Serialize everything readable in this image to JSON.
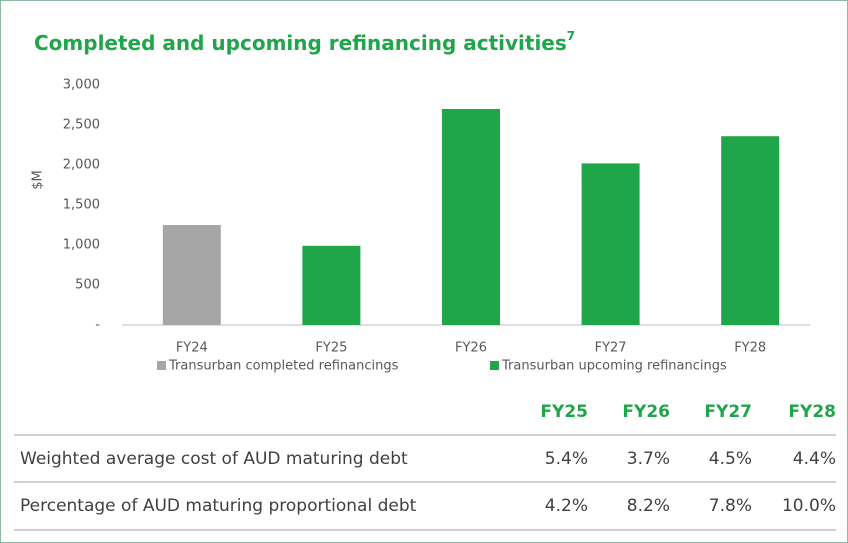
{
  "chart_data": {
    "type": "bar",
    "title": "Completed and upcoming refinancing activities",
    "title_superscript": "7",
    "y_label": "$M",
    "categories": [
      "FY24",
      "FY25",
      "FY26",
      "FY27",
      "FY28"
    ],
    "series": [
      {
        "name": "Transurban completed refinancings",
        "color": "#a6a6a6",
        "values": [
          1250,
          null,
          null,
          null,
          null
        ]
      },
      {
        "name": "Transurban upcoming refinancings",
        "color": "#1fa64a",
        "values": [
          null,
          990,
          2700,
          2020,
          2360
        ]
      }
    ],
    "ylim": [
      0,
      3000
    ],
    "yticks": [
      {
        "value": 0,
        "label": "-"
      },
      500,
      {
        "value": 1000,
        "label": "1,000"
      },
      {
        "value": 1500,
        "label": "1,500"
      },
      {
        "value": 2000,
        "label": "2,000"
      },
      {
        "value": 2500,
        "label": "2,500"
      },
      {
        "value": 3000,
        "label": "3,000"
      }
    ],
    "grid": false,
    "legend": "bottom"
  },
  "table": {
    "columns": [
      "FY25",
      "FY26",
      "FY27",
      "FY28"
    ],
    "rows": [
      {
        "label": "Weighted average cost of AUD maturing debt",
        "cells": [
          "5.4%",
          "3.7%",
          "4.5%",
          "4.4%"
        ]
      },
      {
        "label": "Percentage of AUD maturing proportional debt",
        "cells": [
          "4.2%",
          "8.2%",
          "7.8%",
          "10.0%"
        ]
      }
    ]
  }
}
